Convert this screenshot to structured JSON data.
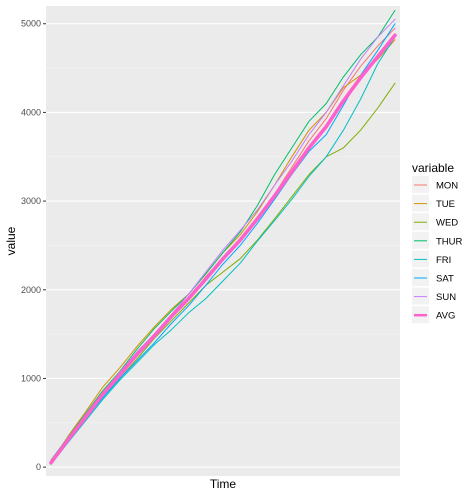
{
  "chart_data": {
    "type": "line",
    "xlabel": "Time",
    "ylabel": "value",
    "ylim": [
      -100,
      5200
    ],
    "xlim": [
      0,
      1
    ],
    "y_ticks": [
      0,
      1000,
      2000,
      3000,
      4000,
      5000
    ],
    "grid": true,
    "legend": {
      "title": "variable",
      "placement": "right"
    },
    "x": [
      0,
      0.05,
      0.1,
      0.15,
      0.2,
      0.25,
      0.3,
      0.35,
      0.4,
      0.45,
      0.5,
      0.55,
      0.6,
      0.65,
      0.7,
      0.75,
      0.8,
      0.85,
      0.9,
      0.95,
      1.0
    ],
    "series": [
      {
        "name": "MON",
        "color": "#F8766D",
        "values": [
          50,
          320,
          560,
          820,
          1050,
          1250,
          1480,
          1700,
          1900,
          2150,
          2360,
          2550,
          2800,
          3080,
          3380,
          3680,
          3930,
          4250,
          4520,
          4750,
          4950
        ]
      },
      {
        "name": "TUE",
        "color": "#CD9600",
        "values": [
          60,
          350,
          620,
          900,
          1120,
          1360,
          1580,
          1780,
          1950,
          2180,
          2420,
          2620,
          2880,
          3180,
          3500,
          3800,
          4000,
          4280,
          4420,
          4600,
          4820
        ]
      },
      {
        "name": "WED",
        "color": "#7CAE00",
        "values": [
          40,
          300,
          550,
          800,
          1000,
          1220,
          1450,
          1650,
          1850,
          2050,
          2200,
          2350,
          2560,
          2800,
          3050,
          3300,
          3500,
          3600,
          3800,
          4050,
          4330
        ]
      },
      {
        "name": "THUR",
        "color": "#00BE67",
        "values": [
          80,
          340,
          600,
          860,
          1080,
          1330,
          1560,
          1760,
          1950,
          2180,
          2420,
          2650,
          2950,
          3300,
          3600,
          3900,
          4100,
          4400,
          4650,
          4850,
          5150
        ]
      },
      {
        "name": "FRI",
        "color": "#00BFC4",
        "values": [
          30,
          280,
          520,
          760,
          980,
          1180,
          1380,
          1550,
          1740,
          1900,
          2100,
          2300,
          2550,
          2780,
          3020,
          3280,
          3500,
          3800,
          4150,
          4550,
          4850
        ]
      },
      {
        "name": "SAT",
        "color": "#00A9FF",
        "values": [
          40,
          290,
          540,
          780,
          1000,
          1200,
          1400,
          1620,
          1820,
          2050,
          2290,
          2500,
          2750,
          3020,
          3300,
          3560,
          3750,
          4080,
          4420,
          4700,
          5000
        ]
      },
      {
        "name": "SUN",
        "color": "#C77CFF",
        "values": [
          60,
          330,
          590,
          840,
          1070,
          1300,
          1500,
          1720,
          1950,
          2200,
          2450,
          2670,
          2900,
          3180,
          3450,
          3750,
          4000,
          4300,
          4600,
          4850,
          5050
        ]
      },
      {
        "name": "AVG",
        "color": "#FF61CC",
        "values": [
          50,
          310,
          560,
          820,
          1040,
          1270,
          1480,
          1700,
          1900,
          2120,
          2350,
          2560,
          2800,
          3060,
          3330,
          3600,
          3840,
          4130,
          4390,
          4630,
          4870
        ]
      }
    ]
  }
}
